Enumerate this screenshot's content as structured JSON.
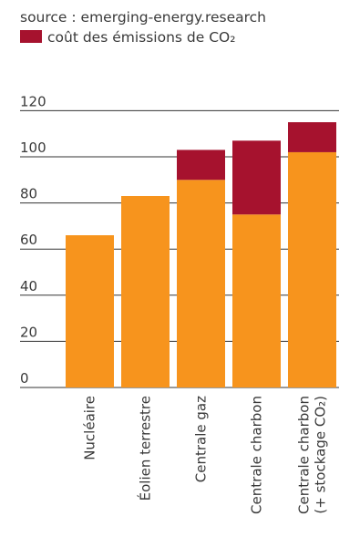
{
  "header": {
    "source": "source : emerging-energy.research"
  },
  "chart_data": {
    "type": "bar",
    "stacked": true,
    "categories": [
      "Nucléaire",
      "Éolien terrestre",
      "Centrale gaz",
      "Centrale charbon",
      "Centrale charbon (+ stockage CO₂)"
    ],
    "category_lines": [
      [
        "Nucléaire"
      ],
      [
        "Éolien terrestre"
      ],
      [
        "Centrale gaz"
      ],
      [
        "Centrale charbon"
      ],
      [
        "Centrale charbon",
        "(+ stockage CO₂)"
      ]
    ],
    "series": [
      {
        "name": "",
        "values": [
          66,
          83,
          90,
          75,
          102
        ],
        "color": "#F7941D"
      },
      {
        "name": "coût des émissions de CO₂",
        "values": [
          0,
          0,
          13,
          32,
          13
        ],
        "color": "#A6122E"
      }
    ],
    "y_ticks": [
      "0",
      "20",
      "40",
      "60",
      "80",
      "100",
      "120"
    ],
    "ylim": [
      0,
      120
    ],
    "grid": true,
    "legend_position": "top-left"
  }
}
